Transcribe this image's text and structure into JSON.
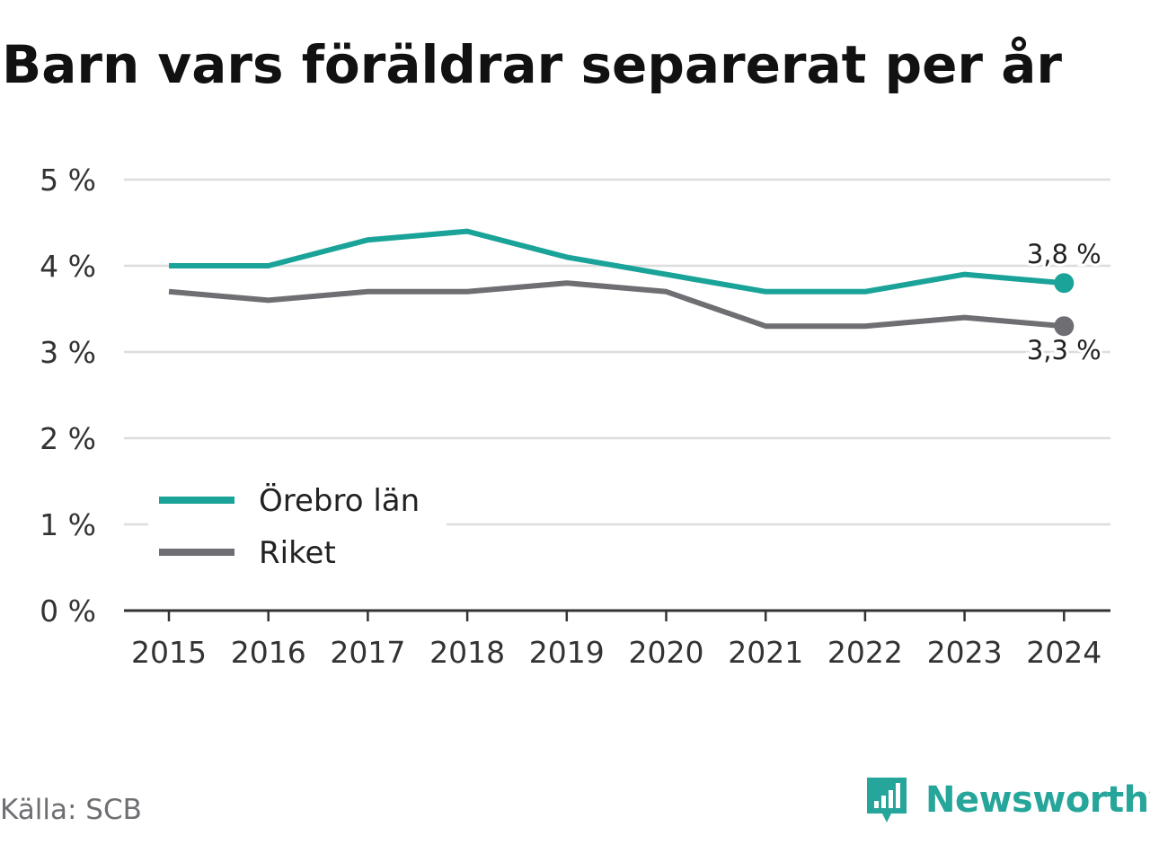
{
  "colors": {
    "series_orebro": "#1aa398",
    "series_riket": "#6e6e73",
    "grid": "#dddddd",
    "axis": "#333333",
    "text": "#333333",
    "brand": "#26a69a"
  },
  "footer": {
    "source": "Källa: SCB",
    "brand_name": "Newsworthy",
    "brand_icon": "newsworthy-logo-icon"
  },
  "chart_data": {
    "type": "line",
    "title": "Barn vars föräldrar separerat per år",
    "xlabel": "",
    "ylabel": "",
    "categories": [
      "2015",
      "2016",
      "2017",
      "2018",
      "2019",
      "2020",
      "2021",
      "2022",
      "2023",
      "2024"
    ],
    "y_ticks": [
      "0 %",
      "1 %",
      "2 %",
      "3 %",
      "4 %",
      "5 %"
    ],
    "ylim": [
      0,
      5
    ],
    "grid": true,
    "legend_position": "bottom-left",
    "series": [
      {
        "name": "Örebro län",
        "values": [
          4.0,
          4.0,
          4.3,
          4.4,
          4.1,
          3.9,
          3.7,
          3.7,
          3.9,
          3.8
        ],
        "end_label": "3,8 %"
      },
      {
        "name": "Riket",
        "values": [
          3.7,
          3.6,
          3.7,
          3.7,
          3.8,
          3.7,
          3.3,
          3.3,
          3.4,
          3.3
        ],
        "end_label": "3,3 %"
      }
    ]
  }
}
